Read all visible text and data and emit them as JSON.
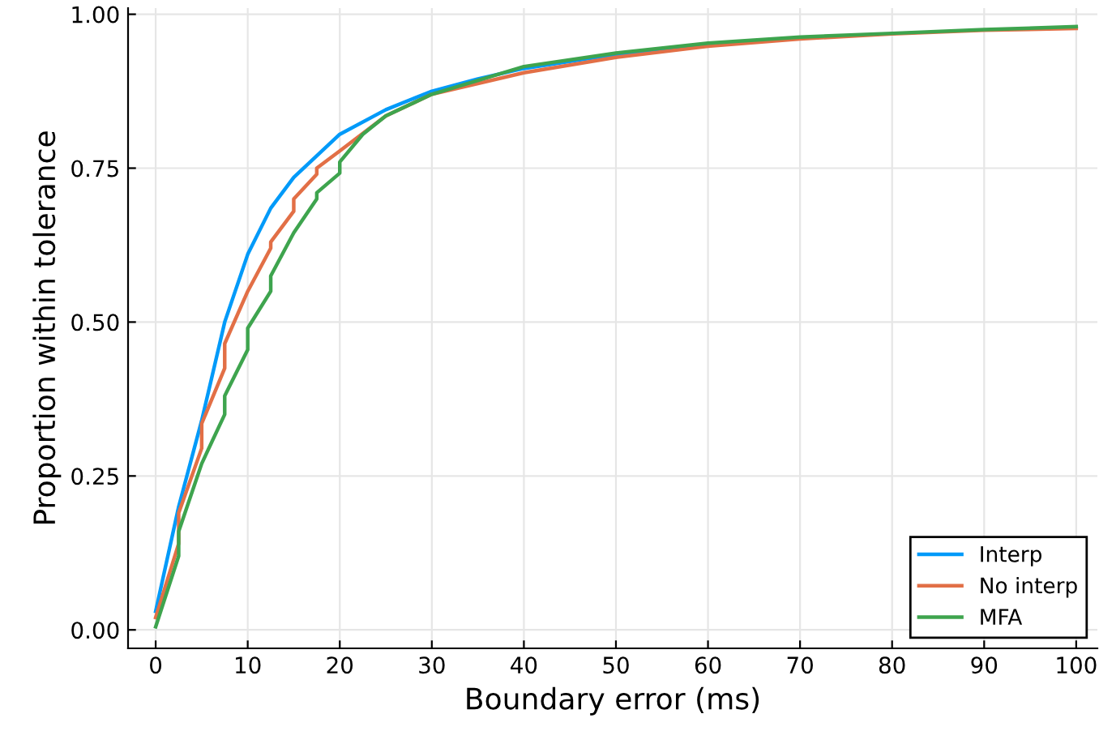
{
  "chart_data": {
    "type": "line",
    "xlabel": "Boundary error (ms)",
    "ylabel": "Proportion within tolerance",
    "xlim": [
      -3,
      102.3
    ],
    "ylim": [
      -0.03,
      1.01
    ],
    "xticks": [
      0,
      10,
      20,
      30,
      40,
      50,
      60,
      70,
      80,
      90,
      100
    ],
    "yticks": [
      {
        "value": 0,
        "label": "0.00"
      },
      {
        "value": 0.25,
        "label": "0.25"
      },
      {
        "value": 0.5,
        "label": "0.50"
      },
      {
        "value": 0.75,
        "label": "0.75"
      },
      {
        "value": 1,
        "label": "1.00"
      }
    ],
    "grid": true,
    "legend": "bottom right",
    "line_style": "solid",
    "marker": "none",
    "series": [
      {
        "name": "Interp",
        "color": "#009af9",
        "x": [
          0,
          2.5,
          5,
          7.5,
          10,
          12.5,
          15,
          20,
          25,
          30,
          35,
          40,
          50,
          60
        ],
        "values": [
          0.03,
          0.2,
          0.34,
          0.5,
          0.61,
          0.685,
          0.735,
          0.805,
          0.845,
          0.875,
          0.895,
          0.912,
          0.935,
          0.952
        ]
      },
      {
        "name": "No interp",
        "color": "#e26f46",
        "x": [
          0,
          2.5,
          2.5,
          5,
          5,
          7.5,
          7.5,
          10,
          12.5,
          12.5,
          15,
          15,
          17.5,
          17.5,
          20,
          25,
          30,
          40,
          50,
          60,
          70,
          80,
          90,
          100
        ],
        "values": [
          0.02,
          0.14,
          0.19,
          0.295,
          0.335,
          0.425,
          0.465,
          0.55,
          0.62,
          0.63,
          0.68,
          0.7,
          0.74,
          0.75,
          0.778,
          0.835,
          0.87,
          0.905,
          0.93,
          0.948,
          0.96,
          0.968,
          0.974,
          0.977
        ]
      },
      {
        "name": "MFA",
        "color": "#3ea44e",
        "x": [
          0,
          2.5,
          2.5,
          5,
          7.5,
          7.5,
          10,
          10,
          12.5,
          12.5,
          15,
          17.5,
          17.5,
          20,
          20,
          22.5,
          25,
          30,
          40,
          50,
          60,
          70,
          80,
          90,
          100
        ],
        "values": [
          0.005,
          0.12,
          0.16,
          0.27,
          0.35,
          0.38,
          0.455,
          0.49,
          0.55,
          0.575,
          0.645,
          0.7,
          0.71,
          0.742,
          0.76,
          0.805,
          0.835,
          0.87,
          0.915,
          0.937,
          0.953,
          0.963,
          0.969,
          0.975,
          0.98
        ]
      }
    ]
  }
}
